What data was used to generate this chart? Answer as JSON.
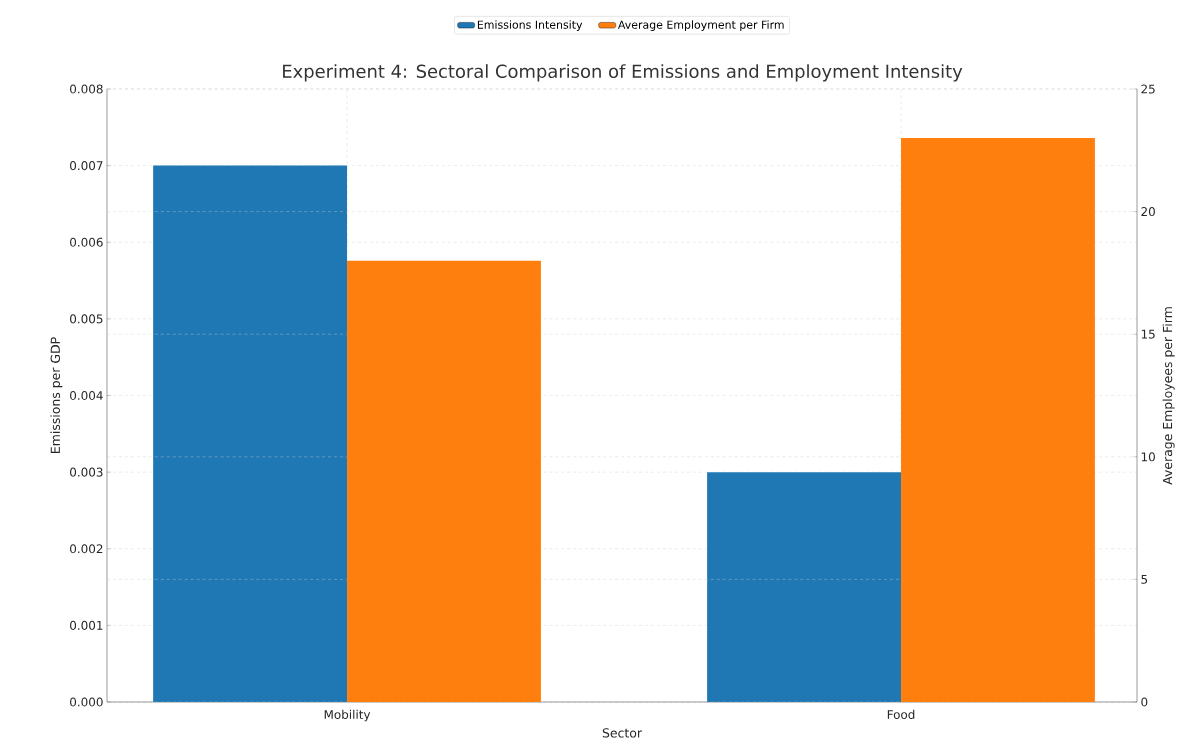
{
  "chart_data": {
    "type": "bar",
    "title": "Experiment 4: Sectoral Comparison of Emissions and Employment Intensity",
    "xlabel": "Sector",
    "ylabel": "Emissions per GDP",
    "y2label": "Average Employees per Firm",
    "categories": [
      "Mobility",
      "Food"
    ],
    "series": [
      {
        "name": "Emissions Intensity",
        "color": "#1f77b4",
        "values": [
          0.007,
          0.003
        ]
      },
      {
        "name": "Average Employment per Firm",
        "color": "#ff7f0e",
        "values": [
          18,
          23
        ],
        "axis": "y2"
      }
    ],
    "ylim": [
      0,
      0.008
    ],
    "yticks": [
      {
        "value": 0,
        "label": "0.000"
      },
      {
        "value": 0.001,
        "label": "0.001"
      },
      {
        "value": 0.002,
        "label": "0.002"
      },
      {
        "value": 0.003,
        "label": "0.003"
      },
      {
        "value": 0.004,
        "label": "0.004"
      },
      {
        "value": 0.005,
        "label": "0.005"
      },
      {
        "value": 0.006,
        "label": "0.006"
      },
      {
        "value": 0.007,
        "label": "0.007"
      },
      {
        "value": 0.008,
        "label": "0.008"
      }
    ],
    "y2lim": [
      0,
      25
    ],
    "y2ticks": [
      0,
      5,
      10,
      15,
      20,
      25
    ],
    "grid": true,
    "legend": "top"
  }
}
